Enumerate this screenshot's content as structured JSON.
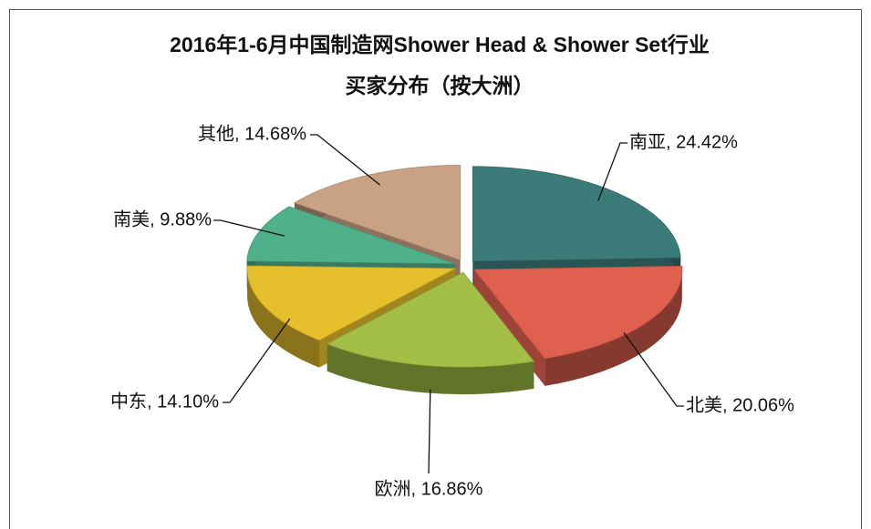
{
  "chart_data": {
    "type": "pie",
    "title": [
      "2016年1-6月中国制造网Shower Head & Shower Set行业",
      "买家分布（按大洲）"
    ],
    "categories": [
      "南亚",
      "北美",
      "欧洲",
      "中东",
      "南美",
      "其他"
    ],
    "values": [
      24.42,
      20.06,
      16.86,
      14.1,
      9.88,
      14.68
    ],
    "value_labels": [
      "南亚, 24.42%",
      "北美, 20.06%",
      "欧洲, 16.86%",
      "中东, 14.10%",
      "南美, 9.88%",
      "其他, 14.68%"
    ],
    "colors": [
      "#3b7b79",
      "#e0604f",
      "#a4bf46",
      "#e6c02c",
      "#50b08c",
      "#c9a184"
    ]
  }
}
